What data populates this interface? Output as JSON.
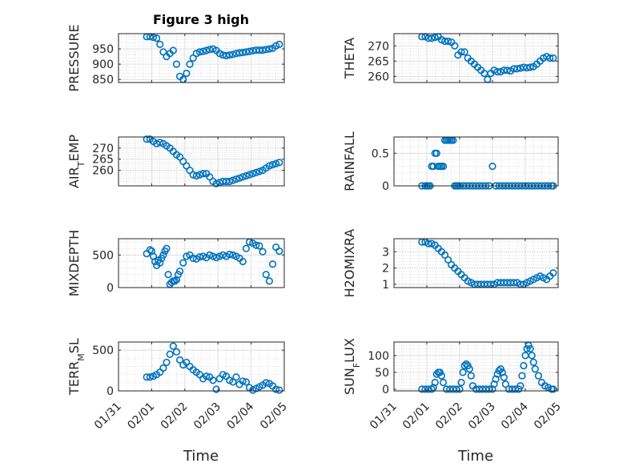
{
  "figure": {
    "title": "Figure 3 high",
    "marker_color": "#0072bd",
    "xaxis_label": "Time",
    "xtick_labels": [
      "01/31",
      "02/01",
      "02/02",
      "02/03",
      "02/04",
      "02/05"
    ]
  },
  "chart_data": [
    {
      "type": "scatter",
      "name_label": "PRESSURE",
      "ylabel": "PRESSURE",
      "ylim": [
        840,
        1000
      ],
      "yticks": [
        850,
        900,
        950
      ],
      "ytick_labels": [
        "850",
        "900",
        "950"
      ],
      "xlim": [
        0,
        5
      ],
      "grid": true,
      "title": "Figure 3 high",
      "x": [
        0.0,
        0.1,
        0.2,
        0.3,
        0.4,
        0.5,
        0.6,
        0.7,
        0.8,
        0.9,
        1.0,
        1.1,
        1.2,
        1.3,
        1.4,
        1.5,
        1.6,
        1.7,
        1.8,
        1.9,
        2.0,
        2.1,
        2.2,
        2.3,
        2.4,
        2.5,
        2.6,
        2.7,
        2.8,
        2.9,
        3.0,
        3.1,
        3.2,
        3.3,
        3.4,
        3.5,
        3.6,
        3.7,
        3.8,
        3.9,
        4.0
      ],
      "y": [
        990,
        990,
        988,
        985,
        965,
        940,
        925,
        935,
        945,
        900,
        860,
        850,
        870,
        900,
        920,
        935,
        940,
        942,
        945,
        948,
        950,
        945,
        935,
        930,
        928,
        930,
        932,
        935,
        937,
        938,
        940,
        942,
        944,
        946,
        946,
        946,
        948,
        950,
        952,
        960,
        965
      ],
      "x_offset": 0.85
    },
    {
      "type": "scatter",
      "ylabel": "THETA",
      "ylim": [
        258,
        274
      ],
      "yticks": [
        260,
        265,
        270
      ],
      "ytick_labels": [
        "260",
        "265",
        "270"
      ],
      "xlim": [
        0,
        5
      ],
      "grid": true,
      "x": [
        0.85,
        0.95,
        1.05,
        1.15,
        1.25,
        1.35,
        1.45,
        1.55,
        1.65,
        1.75,
        1.85,
        1.95,
        2.05,
        2.15,
        2.25,
        2.35,
        2.45,
        2.55,
        2.65,
        2.75,
        2.85,
        2.95,
        3.05,
        3.15,
        3.25,
        3.35,
        3.45,
        3.55,
        3.65,
        3.75,
        3.85,
        3.95,
        4.05,
        4.15,
        4.25,
        4.35,
        4.45,
        4.55,
        4.65,
        4.75,
        4.85
      ],
      "y": [
        273,
        273,
        272.5,
        272.5,
        272.8,
        273,
        272,
        271.5,
        271.5,
        271.2,
        270,
        267,
        268,
        268,
        266,
        265,
        264,
        263,
        262,
        261,
        259,
        261,
        262,
        261.5,
        261.5,
        262,
        262,
        261.8,
        262.5,
        262.5,
        262.7,
        263,
        262.8,
        263,
        263.2,
        264,
        265,
        266,
        266.5,
        266,
        266
      ]
    },
    {
      "type": "scatter",
      "ylabel": "AIR_TEMP",
      "ylabel_main": "AIR",
      "ylabel_sub": "T",
      "ylabel_rest": "EMP",
      "ylim": [
        253,
        275
      ],
      "yticks": [
        260,
        265,
        270
      ],
      "ytick_labels": [
        "260",
        "265",
        "270"
      ],
      "xlim": [
        0,
        5
      ],
      "grid": true,
      "x": [
        0.85,
        0.95,
        1.05,
        1.15,
        1.25,
        1.35,
        1.45,
        1.55,
        1.65,
        1.75,
        1.85,
        1.95,
        2.05,
        2.15,
        2.25,
        2.35,
        2.45,
        2.55,
        2.65,
        2.75,
        2.85,
        2.95,
        3.05,
        3.15,
        3.25,
        3.35,
        3.45,
        3.55,
        3.65,
        3.75,
        3.85,
        3.95,
        4.05,
        4.15,
        4.25,
        4.35,
        4.45,
        4.55,
        4.65,
        4.75,
        4.85
      ],
      "y": [
        274,
        274,
        273,
        272,
        272.5,
        272,
        271,
        270,
        268.5,
        267,
        266,
        264,
        262,
        260,
        258,
        257.5,
        258,
        258.5,
        258.5,
        257,
        255,
        254,
        254.5,
        255,
        255,
        255,
        255.5,
        256,
        256.5,
        257,
        257.5,
        258,
        258.5,
        259,
        259.5,
        260,
        261,
        262,
        262.5,
        263,
        263.5
      ]
    },
    {
      "type": "scatter",
      "ylabel": "RAINFALL",
      "ylim": [
        0,
        0.75
      ],
      "yticks": [
        0,
        0.5
      ],
      "ytick_labels": [
        "0",
        "0.5"
      ],
      "xlim": [
        0,
        5
      ],
      "grid": true,
      "x": [
        0.85,
        0.95,
        1.0,
        1.05,
        1.1,
        1.15,
        1.2,
        1.25,
        1.3,
        1.35,
        1.4,
        1.45,
        1.5,
        1.55,
        1.6,
        1.65,
        1.7,
        1.75,
        1.8,
        1.85,
        1.9,
        1.95,
        2.0,
        2.1,
        2.2,
        2.3,
        2.4,
        2.5,
        2.6,
        2.7,
        2.8,
        2.9,
        3.0,
        3.1,
        3.2,
        3.3,
        3.4,
        3.5,
        3.6,
        3.7,
        3.8,
        3.9,
        4.0,
        4.1,
        4.2,
        4.3,
        4.4,
        4.5,
        4.6,
        4.7,
        4.8,
        4.85
      ],
      "y": [
        0,
        0,
        0,
        0,
        0,
        0.3,
        0.3,
        0.5,
        0.5,
        0.3,
        0.3,
        0.3,
        0.3,
        0.7,
        0.7,
        0.7,
        0.7,
        0.7,
        0.7,
        0,
        0,
        0,
        0,
        0,
        0,
        0,
        0,
        0,
        0,
        0,
        0,
        0,
        0.3,
        0,
        0,
        0,
        0,
        0,
        0,
        0,
        0,
        0,
        0,
        0,
        0,
        0,
        0,
        0,
        0,
        0,
        0,
        0
      ]
    },
    {
      "type": "scatter",
      "ylabel": "MIXDEPTH",
      "ylim": [
        0,
        750
      ],
      "yticks": [
        0,
        500
      ],
      "ytick_labels": [
        "0",
        "500"
      ],
      "xlim": [
        0,
        5
      ],
      "grid": true,
      "x": [
        0.85,
        0.95,
        1.0,
        1.05,
        1.1,
        1.15,
        1.2,
        1.25,
        1.3,
        1.35,
        1.4,
        1.45,
        1.5,
        1.55,
        1.6,
        1.65,
        1.7,
        1.75,
        1.8,
        1.85,
        1.95,
        2.05,
        2.15,
        2.25,
        2.35,
        2.45,
        2.55,
        2.65,
        2.75,
        2.85,
        2.95,
        3.05,
        3.15,
        3.25,
        3.35,
        3.45,
        3.55,
        3.65,
        3.75,
        3.85,
        3.95,
        4.05,
        4.15,
        4.25,
        4.35,
        4.45,
        4.55,
        4.65,
        4.75,
        4.85
      ],
      "y": [
        520,
        580,
        560,
        480,
        400,
        340,
        420,
        380,
        450,
        500,
        560,
        600,
        200,
        50,
        80,
        100,
        100,
        120,
        200,
        250,
        380,
        480,
        500,
        450,
        440,
        470,
        480,
        460,
        500,
        480,
        460,
        480,
        500,
        480,
        510,
        500,
        480,
        450,
        400,
        600,
        700,
        680,
        650,
        640,
        550,
        200,
        100,
        360,
        620,
        560
      ]
    },
    {
      "type": "scatter",
      "ylabel": "H2OMIXRA",
      "ylim": [
        0.8,
        3.8
      ],
      "yticks": [
        1,
        2,
        3
      ],
      "ytick_labels": [
        "1",
        "2",
        "3"
      ],
      "xlim": [
        0,
        5
      ],
      "grid": true,
      "x": [
        0.85,
        0.95,
        1.05,
        1.15,
        1.25,
        1.35,
        1.45,
        1.55,
        1.65,
        1.75,
        1.85,
        1.95,
        2.05,
        2.15,
        2.25,
        2.35,
        2.45,
        2.55,
        2.65,
        2.75,
        2.85,
        2.95,
        3.05,
        3.15,
        3.25,
        3.35,
        3.45,
        3.55,
        3.65,
        3.75,
        3.85,
        3.95,
        4.05,
        4.15,
        4.25,
        4.35,
        4.45,
        4.55,
        4.65,
        4.75,
        4.85
      ],
      "y": [
        3.6,
        3.6,
        3.5,
        3.5,
        3.4,
        3.2,
        3.0,
        2.8,
        2.5,
        2.2,
        2.0,
        1.8,
        1.6,
        1.4,
        1.2,
        1.1,
        1.0,
        1.0,
        1.0,
        1.0,
        1.0,
        1.0,
        1.0,
        1.1,
        1.1,
        1.1,
        1.1,
        1.1,
        1.1,
        1.1,
        1.0,
        1.0,
        1.1,
        1.2,
        1.3,
        1.4,
        1.5,
        1.4,
        1.3,
        1.5,
        1.7
      ]
    },
    {
      "type": "scatter",
      "ylabel": "TERR_MSL",
      "ylabel_main": "TERR",
      "ylabel_sub": "M",
      "ylabel_rest": "SL",
      "ylim": [
        0,
        600
      ],
      "yticks": [
        0,
        500
      ],
      "ytick_labels": [
        "0",
        "500"
      ],
      "xlim": [
        0,
        5
      ],
      "grid": true,
      "x": [
        0.85,
        0.95,
        1.05,
        1.15,
        1.25,
        1.35,
        1.45,
        1.55,
        1.65,
        1.75,
        1.85,
        1.95,
        2.05,
        2.15,
        2.25,
        2.35,
        2.45,
        2.55,
        2.65,
        2.75,
        2.85,
        2.95,
        3.05,
        3.15,
        3.25,
        3.35,
        3.45,
        3.55,
        3.65,
        3.75,
        3.85,
        3.95,
        4.05,
        4.15,
        4.25,
        4.35,
        4.45,
        4.55,
        4.65,
        4.75,
        4.85
      ],
      "y": [
        170,
        170,
        180,
        200,
        230,
        280,
        350,
        450,
        550,
        480,
        380,
        320,
        350,
        300,
        260,
        230,
        200,
        150,
        180,
        170,
        130,
        20,
        150,
        200,
        180,
        130,
        110,
        170,
        80,
        120,
        110,
        40,
        10,
        30,
        50,
        70,
        100,
        90,
        60,
        20,
        10
      ]
    },
    {
      "type": "scatter",
      "ylabel": "SUN_FLUX",
      "ylabel_main": "SUN",
      "ylabel_sub": "F",
      "ylabel_rest": "LUX",
      "ylim": [
        -5,
        140
      ],
      "yticks": [
        0,
        50,
        100
      ],
      "ytick_labels": [
        "0",
        "50",
        "100"
      ],
      "xlim": [
        0,
        5
      ],
      "grid": true,
      "x": [
        0.85,
        0.95,
        1.05,
        1.15,
        1.2,
        1.25,
        1.3,
        1.35,
        1.4,
        1.45,
        1.5,
        1.6,
        1.7,
        1.8,
        1.9,
        2.0,
        2.05,
        2.1,
        2.15,
        2.2,
        2.25,
        2.3,
        2.35,
        2.4,
        2.5,
        2.6,
        2.7,
        2.8,
        2.9,
        3.0,
        3.05,
        3.1,
        3.15,
        3.2,
        3.25,
        3.3,
        3.35,
        3.4,
        3.5,
        3.6,
        3.7,
        3.8,
        3.85,
        3.9,
        3.95,
        4.0,
        4.05,
        4.1,
        4.15,
        4.2,
        4.25,
        4.3,
        4.4,
        4.5,
        4.6,
        4.7,
        4.8,
        4.85
      ],
      "y": [
        0,
        0,
        0,
        0,
        5,
        20,
        45,
        50,
        50,
        40,
        20,
        0,
        0,
        0,
        0,
        0,
        20,
        50,
        70,
        75,
        70,
        60,
        40,
        10,
        0,
        0,
        0,
        0,
        0,
        0,
        15,
        30,
        45,
        55,
        60,
        50,
        35,
        15,
        0,
        0,
        0,
        0,
        10,
        40,
        70,
        100,
        120,
        130,
        120,
        100,
        80,
        60,
        40,
        20,
        10,
        5,
        0,
        0
      ]
    }
  ]
}
